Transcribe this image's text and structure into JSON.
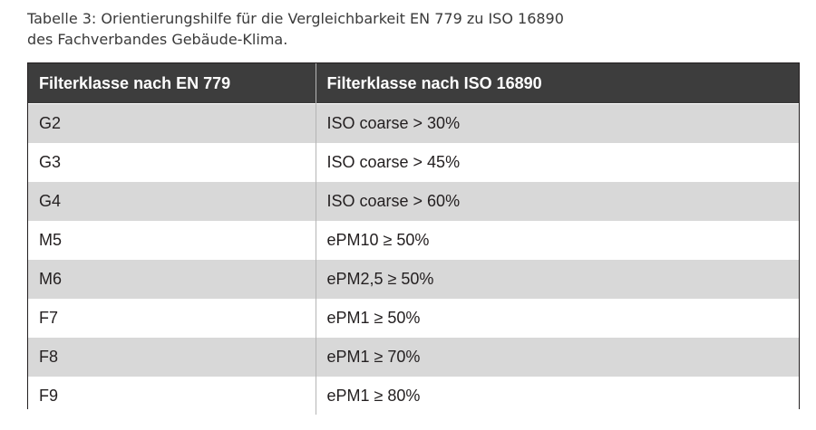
{
  "caption": {
    "line1": "Tabelle 3: Orientierungshilfe für die Vergleichbarkeit EN 779 zu ISO 16890",
    "line2": "des Fachverbandes Gebäude-Klima."
  },
  "table": {
    "headers": [
      "Filterklasse nach EN 779",
      "Filterklasse nach ISO 16890"
    ],
    "rows": [
      [
        "G2",
        "ISO coarse > 30%"
      ],
      [
        "G3",
        "ISO coarse > 45%"
      ],
      [
        "G4",
        "ISO coarse > 60%"
      ],
      [
        "M5",
        "ePM10 ≥ 50%"
      ],
      [
        "M6",
        "ePM2,5 ≥ 50%"
      ],
      [
        "F7",
        "ePM1 ≥ 50%"
      ],
      [
        "F8",
        "ePM1 ≥ 70%"
      ],
      [
        "F9",
        "ePM1 ≥ 80%"
      ]
    ]
  },
  "colors": {
    "header_bg": "#3d3d3d",
    "row_shade": "#d8d8d8",
    "row_plain": "#ffffff"
  }
}
